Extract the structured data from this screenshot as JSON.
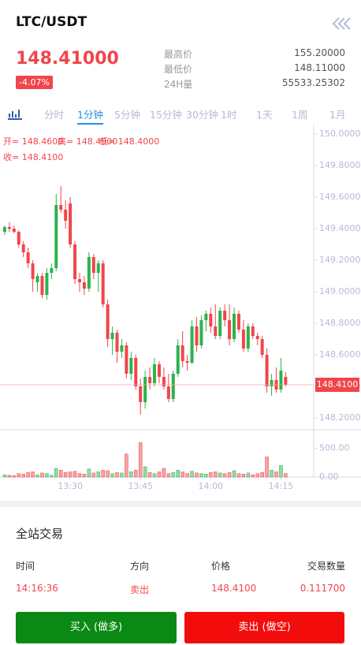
{
  "header": {
    "symbol": "LTC/USDT",
    "price": "148.41000",
    "change": "-4.07%",
    "stats": [
      {
        "label": "最高价",
        "value": "155.20000"
      },
      {
        "label": "最低价",
        "value": "148.11000"
      },
      {
        "label": "24H量",
        "value": "55533.25302"
      }
    ]
  },
  "tabs": [
    "分时",
    "1分钟",
    "5分钟",
    "15分钟",
    "30分钟",
    "1时",
    "1天",
    "1周",
    "1月"
  ],
  "chart_data": {
    "type": "candlestick",
    "info": [
      "开= 148.4600",
      "高= 148.4900",
      "低= 148.4000",
      "收= 148.4100"
    ],
    "last_label": "148.4100",
    "open": [
      149.38,
      149.41,
      149.4,
      149.38,
      149.3,
      149.25,
      149.18,
      149.06,
      149.1,
      148.98,
      149.12,
      149.15,
      149.55,
      149.52,
      149.56,
      149.3,
      149.08,
      149.06,
      149.02,
      149.22,
      149.12,
      149.18,
      148.92,
      148.7,
      148.74,
      148.62,
      148.66,
      148.48,
      148.58,
      148.4,
      148.3,
      148.46,
      148.42,
      148.54,
      148.46,
      148.4,
      148.32,
      148.48,
      148.66,
      148.56,
      148.55,
      148.78,
      148.66,
      148.82,
      148.86,
      148.78,
      148.72,
      148.88,
      148.82,
      148.7,
      148.86,
      148.76,
      148.64,
      148.78,
      148.72,
      148.7,
      148.6,
      148.4,
      148.44,
      148.38,
      148.46
    ],
    "high": [
      149.42,
      149.44,
      149.42,
      149.39,
      149.32,
      149.28,
      149.2,
      149.12,
      149.12,
      149.15,
      149.18,
      149.62,
      149.67,
      149.58,
      149.6,
      149.32,
      149.12,
      149.1,
      149.25,
      149.24,
      149.2,
      149.2,
      148.95,
      148.78,
      148.76,
      148.7,
      148.68,
      148.62,
      148.6,
      148.45,
      148.5,
      148.52,
      148.58,
      148.56,
      148.52,
      148.48,
      148.5,
      148.7,
      148.75,
      148.6,
      148.82,
      148.84,
      148.85,
      148.88,
      148.9,
      148.92,
      148.9,
      148.92,
      148.92,
      148.9,
      148.88,
      148.82,
      148.8,
      148.8,
      148.74,
      148.72,
      148.64,
      148.48,
      148.52,
      148.58,
      148.49
    ],
    "low": [
      149.36,
      149.38,
      149.37,
      149.28,
      149.22,
      149.15,
      149.0,
      149.0,
      148.96,
      148.95,
      149.08,
      149.13,
      149.5,
      149.4,
      149.28,
      149.05,
      149.0,
      148.98,
      149.0,
      149.08,
      149.0,
      148.9,
      148.65,
      148.6,
      148.55,
      148.58,
      148.45,
      148.44,
      148.38,
      148.22,
      148.26,
      148.38,
      148.4,
      148.42,
      148.38,
      148.3,
      148.3,
      148.46,
      148.52,
      148.5,
      148.54,
      148.62,
      148.64,
      148.75,
      148.74,
      148.7,
      148.7,
      148.78,
      148.66,
      148.68,
      148.74,
      148.62,
      148.62,
      148.7,
      148.66,
      148.58,
      148.36,
      148.34,
      148.36,
      148.36,
      148.4
    ],
    "close": [
      149.41,
      149.4,
      149.38,
      149.3,
      149.25,
      149.18,
      149.08,
      149.1,
      148.98,
      149.12,
      149.15,
      149.55,
      149.52,
      149.45,
      149.3,
      149.08,
      149.06,
      149.02,
      149.22,
      149.12,
      149.18,
      148.92,
      148.7,
      148.74,
      148.62,
      148.66,
      148.48,
      148.58,
      148.4,
      148.3,
      148.46,
      148.42,
      148.54,
      148.46,
      148.4,
      148.32,
      148.48,
      148.66,
      148.56,
      148.55,
      148.78,
      148.66,
      148.82,
      148.86,
      148.78,
      148.72,
      148.88,
      148.82,
      148.7,
      148.86,
      148.76,
      148.64,
      148.78,
      148.72,
      148.7,
      148.6,
      148.4,
      148.44,
      148.38,
      148.5,
      148.41
    ],
    "volume": [
      40,
      30,
      25,
      60,
      50,
      80,
      90,
      40,
      70,
      60,
      30,
      150,
      120,
      80,
      90,
      100,
      60,
      50,
      140,
      70,
      90,
      120,
      110,
      60,
      80,
      70,
      400,
      90,
      120,
      600,
      180,
      80,
      60,
      90,
      150,
      60,
      80,
      120,
      90,
      60,
      100,
      70,
      60,
      50,
      80,
      90,
      70,
      60,
      80,
      110,
      60,
      50,
      70,
      40,
      60,
      80,
      350,
      120,
      90,
      200,
      60
    ],
    "up_color": "#2eb24c",
    "down_color": "#f0464b",
    "xlim": [
      -1,
      66
    ],
    "xticks": [
      {
        "value": 14,
        "label": "13:30"
      },
      {
        "value": 29,
        "label": "13:45"
      },
      {
        "value": 44,
        "label": "14:00"
      },
      {
        "value": 59,
        "label": "14:15"
      }
    ],
    "ylim": [
      148.125,
      150.05
    ],
    "yticks": [
      {
        "value": 150,
        "label": "150.0000"
      },
      {
        "value": 149.8,
        "label": "149.8000"
      },
      {
        "value": 149.6,
        "label": "149.6000"
      },
      {
        "value": 149.4,
        "label": "149.4000"
      },
      {
        "value": 149.2,
        "label": "149.2000"
      },
      {
        "value": 149,
        "label": "149.0000"
      },
      {
        "value": 148.8,
        "label": "148.8000"
      },
      {
        "value": 148.6,
        "label": "148.6000"
      },
      {
        "value": 148.4,
        "label": "148.4000"
      },
      {
        "value": 148.2,
        "label": "148.2000"
      }
    ],
    "vol_ylim": [
      0,
      780
    ],
    "vol_yticks": [
      {
        "value": 500,
        "label": "500.00"
      },
      {
        "value": 0,
        "label": "0.00"
      }
    ]
  },
  "trades": {
    "title": "全站交易",
    "columns": [
      "时间",
      "方向",
      "价格",
      "交易数量"
    ],
    "rows": [
      [
        "14:16:36",
        "卖出",
        "148.4100",
        "0.111700"
      ]
    ]
  },
  "buttons": {
    "buy": "买入 (做多)",
    "sell": "卖出 (做空)"
  }
}
